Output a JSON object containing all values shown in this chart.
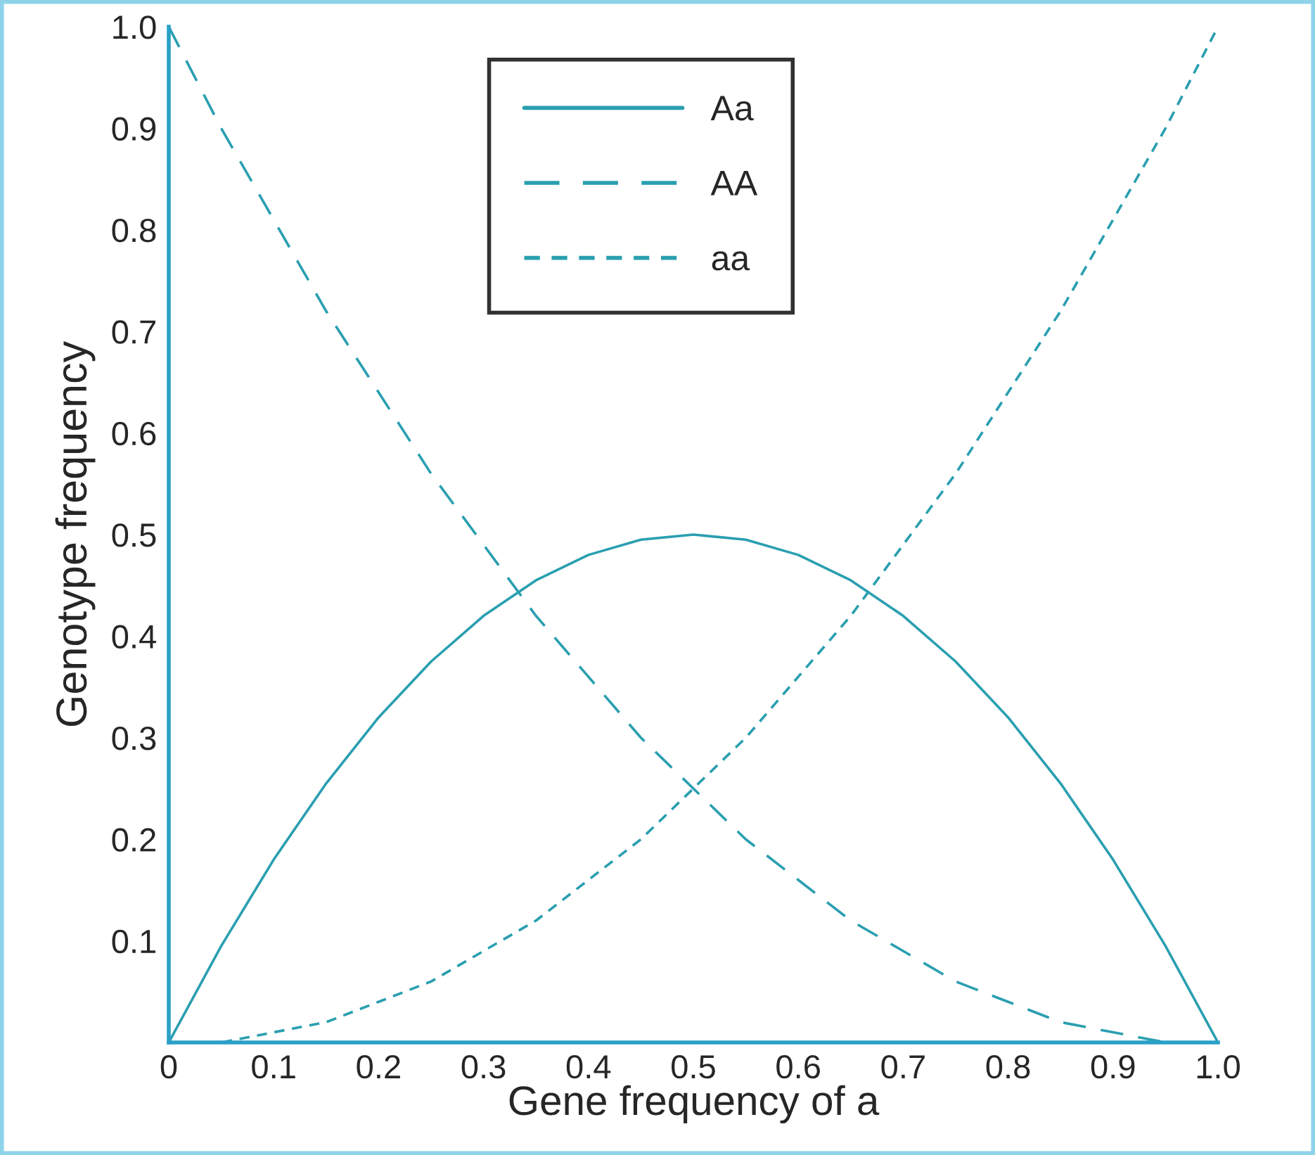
{
  "chart_data": {
    "type": "line",
    "xlabel": "Gene frequency of a",
    "ylabel": "Genotype frequency",
    "x": [
      0,
      0.05,
      0.1,
      0.15,
      0.2,
      0.25,
      0.3,
      0.35,
      0.4,
      0.45,
      0.5,
      0.55,
      0.6,
      0.65,
      0.7,
      0.75,
      0.8,
      0.85,
      0.9,
      0.95,
      1.0
    ],
    "series": [
      {
        "name": "Aa",
        "color": "#2a9fb0",
        "line_style": "solid",
        "values": [
          0,
          0.095,
          0.18,
          0.255,
          0.32,
          0.375,
          0.42,
          0.455,
          0.48,
          0.495,
          0.5,
          0.495,
          0.48,
          0.455,
          0.42,
          0.375,
          0.32,
          0.255,
          0.18,
          0.095,
          0
        ]
      },
      {
        "name": "AA",
        "color": "#2a9fb0",
        "line_style": "dashed",
        "values": [
          1.0,
          0.9,
          0.81,
          0.72,
          0.64,
          0.56,
          0.49,
          0.42,
          0.36,
          0.3,
          0.25,
          0.2,
          0.16,
          0.12,
          0.09,
          0.06,
          0.04,
          0.02,
          0.01,
          0.0,
          0
        ]
      },
      {
        "name": "aa",
        "color": "#2a9fb0",
        "line_style": "dotted",
        "values": [
          0,
          0.0,
          0.01,
          0.02,
          0.04,
          0.06,
          0.09,
          0.12,
          0.16,
          0.2,
          0.25,
          0.3,
          0.36,
          0.42,
          0.49,
          0.56,
          0.64,
          0.72,
          0.81,
          0.9,
          1.0
        ]
      }
    ],
    "xlim": [
      0,
      1.0
    ],
    "ylim": [
      0,
      1.0
    ],
    "xticks": [
      {
        "value": 0,
        "label": "0"
      },
      0.1,
      0.2,
      0.3,
      0.4,
      0.5,
      0.6,
      0.7,
      0.8,
      0.9,
      "1.0"
    ],
    "yticks": [
      0.1,
      0.2,
      0.3,
      0.4,
      0.5,
      0.6,
      0.7,
      0.8,
      0.9,
      {
        "value": 1.0,
        "label": "1.0"
      }
    ],
    "legend": "top",
    "grid": false
  }
}
